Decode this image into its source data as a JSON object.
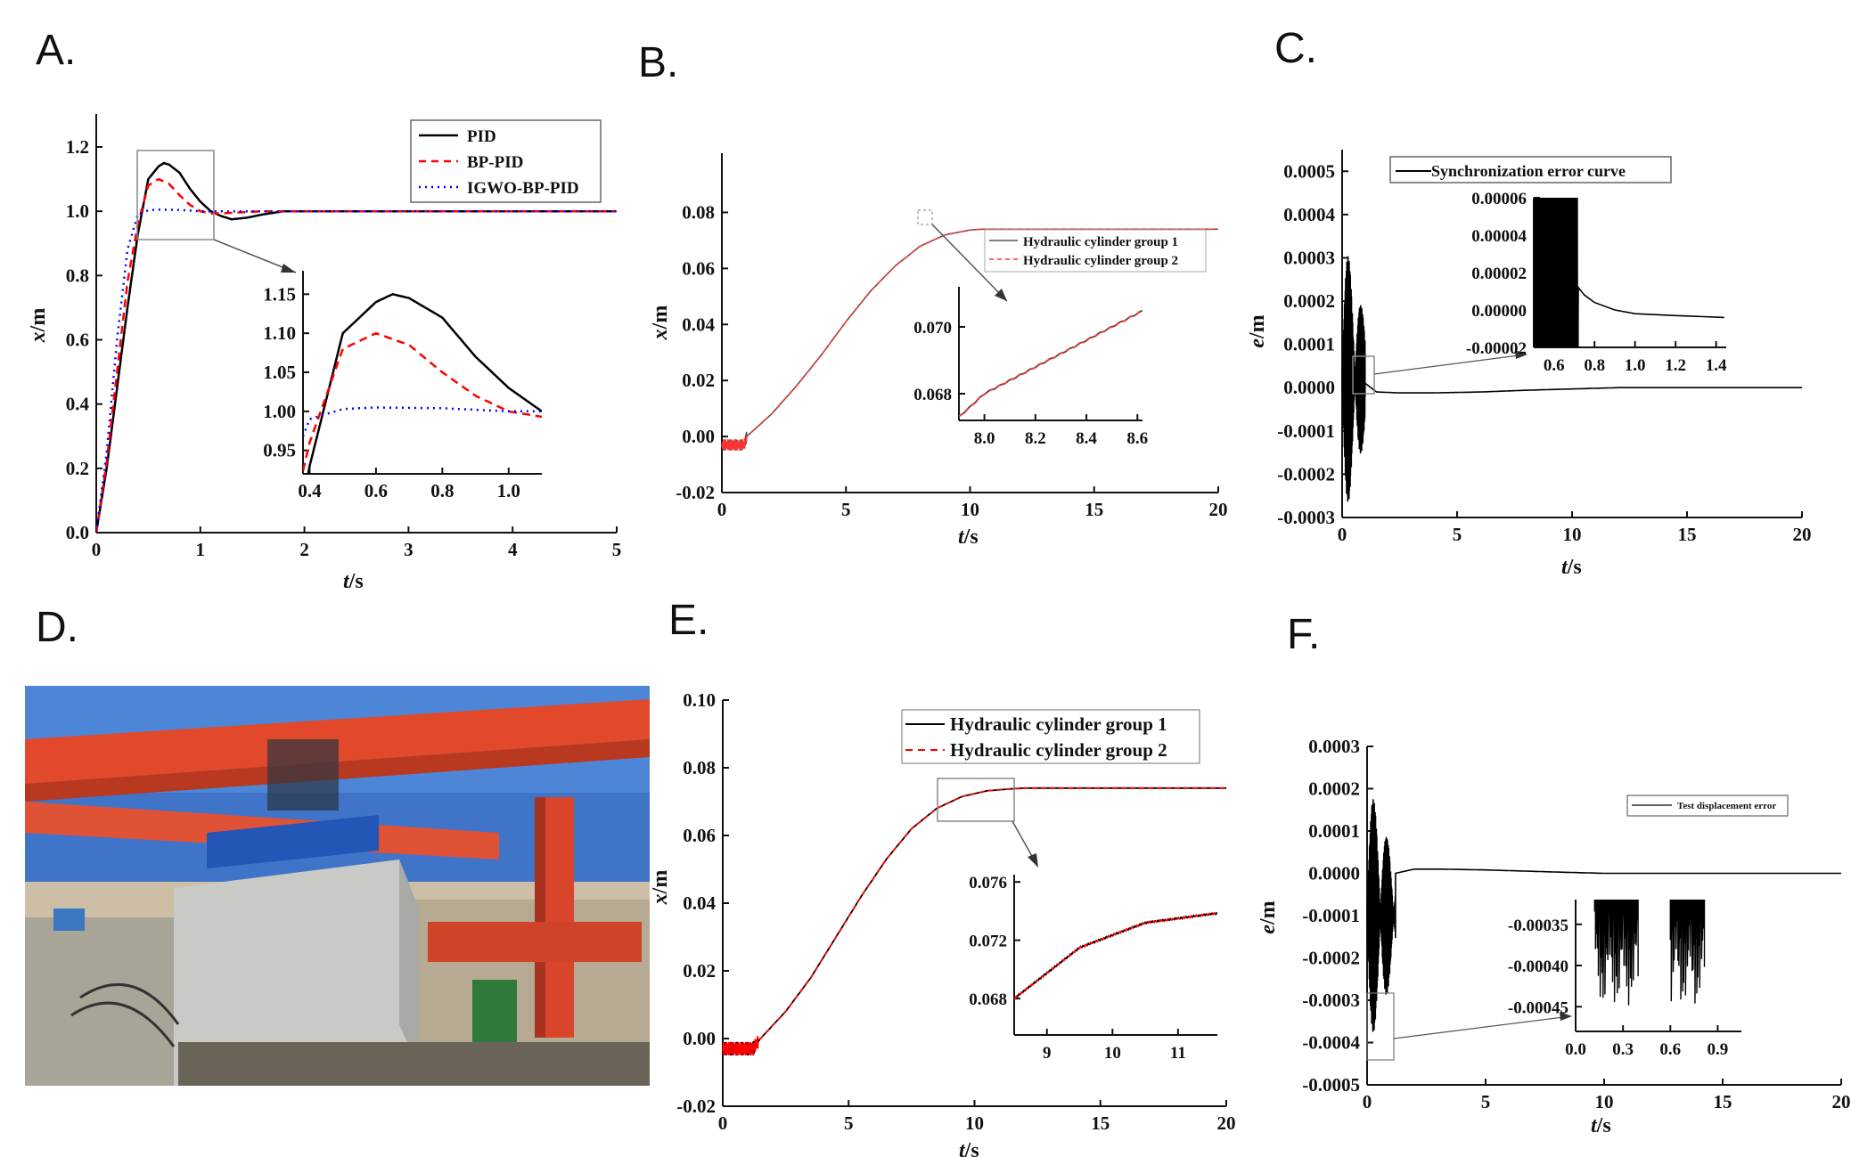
{
  "chart_data": [
    {
      "panel": "A.",
      "type": "line",
      "xlabel_italic": "t",
      "xlabel_unit": "/s",
      "ylabel_italic": "x",
      "ylabel_unit": "/m",
      "xlim": [
        0,
        5
      ],
      "ylim": [
        0,
        1.25
      ],
      "xticks": [
        0,
        1,
        2,
        3,
        4,
        5
      ],
      "yticks": [
        0.0,
        0.2,
        0.4,
        0.6,
        0.8,
        1.0,
        1.2
      ],
      "legend_position": "top-right",
      "series": [
        {
          "name": "PID",
          "color": "#000000",
          "dash": "solid",
          "x": [
            0,
            0.1,
            0.2,
            0.3,
            0.4,
            0.5,
            0.6,
            0.65,
            0.7,
            0.8,
            0.9,
            1.0,
            1.1,
            1.2,
            1.3,
            1.45,
            1.6,
            1.8,
            2.0,
            2.5,
            3,
            4,
            5
          ],
          "y": [
            0,
            0.2,
            0.45,
            0.7,
            0.93,
            1.1,
            1.14,
            1.15,
            1.145,
            1.12,
            1.07,
            1.03,
            1.0,
            0.985,
            0.975,
            0.98,
            0.99,
            1.0,
            1.0,
            1.0,
            1.0,
            1.0,
            1.0
          ]
        },
        {
          "name": "BP-PID",
          "color": "#ff0000",
          "dash": "dashed",
          "x": [
            0,
            0.1,
            0.2,
            0.3,
            0.4,
            0.5,
            0.6,
            0.7,
            0.8,
            0.9,
            1.0,
            1.1,
            1.3,
            1.6,
            2,
            3,
            4,
            5
          ],
          "y": [
            0,
            0.22,
            0.5,
            0.78,
            0.96,
            1.08,
            1.1,
            1.085,
            1.05,
            1.02,
            1.0,
            0.993,
            0.995,
            1.0,
            1.0,
            1.0,
            1.0,
            1.0
          ]
        },
        {
          "name": "IGWO-BP-PID",
          "color": "#0000ff",
          "dash": "dotted",
          "x": [
            0,
            0.1,
            0.2,
            0.3,
            0.4,
            0.5,
            0.6,
            0.8,
            1.0,
            2,
            3,
            4,
            5
          ],
          "y": [
            0,
            0.25,
            0.6,
            0.88,
            0.99,
            1.003,
            1.005,
            1.004,
            1.0,
            1.0,
            1.0,
            1.0,
            1.0
          ]
        }
      ],
      "inset": {
        "xlim": [
          0.38,
          1.1
        ],
        "ylim": [
          0.92,
          1.18
        ],
        "xticks": [
          "0.4",
          "0.6",
          "0.8",
          "1.0"
        ],
        "yticks": [
          "0.95",
          "1.00",
          "1.05",
          "1.10",
          "1.15"
        ]
      }
    },
    {
      "panel": "B.",
      "type": "line",
      "xlabel_italic": "t",
      "xlabel_unit": "/s",
      "ylabel_italic": "x",
      "ylabel_unit": "/m",
      "xlim": [
        0,
        20
      ],
      "ylim": [
        -0.02,
        0.09
      ],
      "xticks": [
        0,
        5,
        10,
        15,
        20
      ],
      "yticks": [
        "-0.02",
        "0.00",
        "0.02",
        "0.04",
        "0.06",
        "0.08"
      ],
      "legend_position": "center-right",
      "series": [
        {
          "name": "Hydraulic cylinder group 1",
          "color": "#555555",
          "dash": "solid"
        },
        {
          "name": "Hydraulic cylinder group 2",
          "color": "#ff3333",
          "dash": "dashed"
        }
      ],
      "curve": {
        "x": [
          0,
          0.9,
          1,
          2,
          3,
          4,
          5,
          6,
          7,
          8,
          9,
          10,
          10.5,
          11,
          12,
          15,
          20
        ],
        "y": [
          -0.003,
          -0.003,
          0.0,
          0.008,
          0.018,
          0.029,
          0.041,
          0.052,
          0.061,
          0.068,
          0.072,
          0.0737,
          0.074,
          0.074,
          0.074,
          0.074,
          0.074
        ]
      },
      "inset": {
        "xlim": [
          7.9,
          8.62
        ],
        "ylim": [
          0.0672,
          0.0712
        ],
        "xticks": [
          "8.0",
          "8.2",
          "8.4",
          "8.6"
        ],
        "yticks": [
          "0.068",
          "0.070"
        ]
      }
    },
    {
      "panel": "C.",
      "type": "line",
      "xlabel_italic": "t",
      "xlabel_unit": "/s",
      "ylabel_italic": "e",
      "ylabel_unit": "/m",
      "xlim": [
        0,
        20
      ],
      "ylim": [
        -0.0003,
        0.00055
      ],
      "xticks": [
        0,
        5,
        10,
        15,
        20
      ],
      "yticks": [
        "-0.0003",
        "-0.0002",
        "-0.0001",
        "0.0000",
        "0.0001",
        "0.0002",
        "0.0003",
        "0.0004",
        "0.0005"
      ],
      "legend_position": "top",
      "series": [
        {
          "name": "Synchronization error curve",
          "color": "#000000",
          "dash": "solid"
        }
      ],
      "curve": {
        "x": [
          1.0,
          1.5,
          2.5,
          4,
          6,
          8,
          10,
          12,
          15,
          20
        ],
        "y": [
          1e-05,
          -1e-05,
          -1.2e-05,
          -1.2e-05,
          -1e-05,
          -6e-06,
          -3e-06,
          0.0,
          0.0,
          0.0
        ]
      },
      "inset": {
        "xlim": [
          0.5,
          1.45
        ],
        "ylim": [
          -2e-05,
          6e-05
        ],
        "xticks": [
          "0.6",
          "0.8",
          "1.0",
          "1.2",
          "1.4"
        ],
        "yticks": [
          "-0.00002",
          "0.00000",
          "0.00002",
          "0.00004",
          "0.00006"
        ]
      }
    },
    {
      "panel": "E.",
      "type": "line",
      "xlabel_italic": "t",
      "xlabel_unit": "/s",
      "ylabel_italic": "x",
      "ylabel_unit": "/m",
      "xlim": [
        0,
        20
      ],
      "ylim": [
        -0.02,
        0.1
      ],
      "xticks": [
        0,
        5,
        10,
        15,
        20
      ],
      "yticks": [
        "-0.02",
        "0.00",
        "0.02",
        "0.04",
        "0.06",
        "0.08",
        "0.10"
      ],
      "legend_position": "top-right",
      "series": [
        {
          "name": "Hydraulic cylinder group 1",
          "color": "#000000",
          "dash": "solid"
        },
        {
          "name": "Hydraulic cylinder group 2",
          "color": "#ff0000",
          "dash": "dashed"
        }
      ],
      "curve": {
        "x": [
          0,
          1.2,
          1.5,
          2.5,
          3.5,
          4.5,
          5.5,
          6.5,
          7.5,
          8.5,
          9.5,
          10.5,
          11.5,
          12,
          15,
          20
        ],
        "y": [
          -0.003,
          -0.003,
          0.0,
          0.008,
          0.018,
          0.03,
          0.042,
          0.053,
          0.062,
          0.068,
          0.0715,
          0.0732,
          0.0738,
          0.074,
          0.074,
          0.074
        ]
      },
      "inset": {
        "xlim": [
          8.5,
          11.6
        ],
        "ylim": [
          0.0655,
          0.0765
        ],
        "xticks": [
          "9",
          "10",
          "11"
        ],
        "yticks": [
          "0.068",
          "0.072",
          "0.076"
        ]
      }
    },
    {
      "panel": "F.",
      "type": "line",
      "xlabel_italic": "t",
      "xlabel_unit": "/s",
      "ylabel_italic": "e",
      "ylabel_unit": "/m",
      "xlim": [
        0,
        20
      ],
      "ylim": [
        -0.0005,
        0.0003
      ],
      "xticks": [
        0,
        5,
        10,
        15,
        20
      ],
      "yticks": [
        "-0.0005",
        "-0.0004",
        "-0.0003",
        "-0.0002",
        "-0.0001",
        "0.0000",
        "0.0001",
        "0.0002",
        "0.0003"
      ],
      "legend_position": "top-right",
      "series": [
        {
          "name": "Test displacement error",
          "color": "#000000",
          "dash": "solid"
        }
      ],
      "curve": {
        "x": [
          1.2,
          2,
          3,
          5,
          8,
          10,
          12,
          15,
          20
        ],
        "y": [
          0.0,
          1e-05,
          1e-05,
          8e-06,
          3e-06,
          0.0,
          0.0,
          0.0,
          0.0
        ]
      },
      "inset": {
        "xlim": [
          0,
          1.05
        ],
        "ylim": [
          -0.00048,
          -0.00032
        ],
        "xticks": [
          "0.0",
          "0.3",
          "0.6",
          "0.9"
        ],
        "yticks": [
          "-0.00035",
          "-0.00040",
          "-0.00045"
        ]
      }
    }
  ],
  "photo": {
    "panel": "D.",
    "colors": {
      "sky": "#3f74c9",
      "crane": "#e2492b",
      "beam": "#c9c9c6",
      "ground": "#cdbfa6",
      "blue_frame": "#2456b8"
    }
  }
}
